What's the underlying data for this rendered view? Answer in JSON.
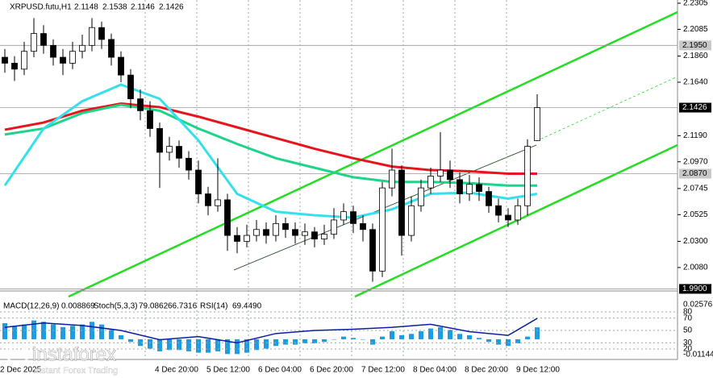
{
  "chart_data": {
    "type": "candlestick",
    "symbol": "XRPUSD.futu,H1",
    "ylim": [
      1.9903,
      2.2332
    ],
    "yticks": [
      2.2305,
      2.2085,
      {
        "value": 2.186,
        "label": "2.1860"
      },
      {
        "value": 2.164,
        "label": "2.1640"
      },
      {
        "value": 2.119,
        "label": "2.1190"
      },
      {
        "value": 2.097,
        "label": "2.0970"
      },
      2.0745,
      2.0525,
      {
        "value": 2.03,
        "label": "2.0300"
      },
      {
        "value": 2.008,
        "label": "2.0080"
      }
    ],
    "levels": [
      {
        "value": 2.195,
        "label": "2.1950"
      },
      {
        "value": 2.1426,
        "label": "2.1426"
      },
      {
        "value": 2.087,
        "label": "2.0870"
      },
      {
        "value": 1.99,
        "label": "1.9900"
      }
    ],
    "candles": {
      "open": [
        2.185,
        2.18,
        2.175,
        2.19,
        2.205,
        2.195,
        2.185,
        2.18,
        2.19,
        2.195,
        2.21,
        2.2,
        2.185,
        2.17,
        2.15,
        2.14,
        2.125,
        2.105,
        2.11,
        2.1,
        2.09,
        2.07,
        2.06,
        2.065,
        2.035,
        2.03,
        2.035,
        2.04,
        2.035,
        2.045,
        2.04,
        2.035,
        2.038,
        2.032,
        2.036,
        2.048,
        2.055,
        2.045,
        2.04,
        2.005,
        2.075,
        2.09,
        2.035,
        2.06,
        2.075,
        2.085,
        2.09,
        2.082,
        2.07,
        2.078,
        2.072,
        2.06,
        2.052,
        2.048,
        2.06,
        2.1148
      ],
      "high": [
        2.192,
        2.186,
        2.198,
        2.218,
        2.212,
        2.2,
        2.192,
        2.198,
        2.204,
        2.218,
        2.215,
        2.205,
        2.19,
        2.175,
        2.158,
        2.148,
        2.13,
        2.118,
        2.115,
        2.106,
        2.098,
        2.076,
        2.1,
        2.07,
        2.042,
        2.044,
        2.048,
        2.046,
        2.052,
        2.05,
        2.046,
        2.045,
        2.042,
        2.044,
        2.058,
        2.062,
        2.06,
        2.052,
        2.045,
        2.08,
        2.108,
        2.094,
        2.068,
        2.082,
        2.092,
        2.122,
        2.098,
        2.088,
        2.086,
        2.084,
        2.076,
        2.066,
        2.058,
        2.066,
        2.116,
        2.1538
      ],
      "low": [
        2.172,
        2.165,
        2.17,
        2.185,
        2.188,
        2.178,
        2.17,
        2.175,
        2.184,
        2.19,
        2.192,
        2.178,
        2.164,
        2.142,
        2.132,
        2.118,
        2.075,
        2.098,
        2.092,
        2.082,
        2.062,
        2.052,
        2.055,
        2.022,
        2.02,
        2.025,
        2.03,
        2.028,
        2.03,
        2.033,
        2.028,
        2.027,
        2.025,
        2.027,
        2.032,
        2.044,
        2.037,
        2.03,
        1.996,
        2.0,
        2.068,
        2.018,
        2.03,
        2.055,
        2.07,
        2.08,
        2.075,
        2.062,
        2.064,
        2.064,
        2.054,
        2.046,
        2.042,
        2.044,
        2.052,
        2.1146
      ],
      "close": [
        2.18,
        2.175,
        2.19,
        2.205,
        2.195,
        2.185,
        2.18,
        2.19,
        2.195,
        2.21,
        2.2,
        2.185,
        2.17,
        2.15,
        2.14,
        2.125,
        2.105,
        2.11,
        2.1,
        2.09,
        2.07,
        2.06,
        2.065,
        2.035,
        2.03,
        2.035,
        2.04,
        2.035,
        2.045,
        2.04,
        2.035,
        2.038,
        2.032,
        2.036,
        2.048,
        2.055,
        2.045,
        2.04,
        2.005,
        2.075,
        2.09,
        2.035,
        2.06,
        2.075,
        2.085,
        2.09,
        2.082,
        2.07,
        2.078,
        2.072,
        2.06,
        2.052,
        2.048,
        2.06,
        2.11,
        2.1426
      ]
    },
    "ma_index": [
      0,
      4,
      8,
      12,
      16,
      20,
      24,
      28,
      32,
      36,
      40,
      44,
      48,
      52,
      55
    ],
    "moving_averages": [
      {
        "color": "#e8141c",
        "values": [
          2.124,
          2.13,
          2.14,
          2.146,
          2.143,
          2.135,
          2.126,
          2.117,
          2.108,
          2.1,
          2.093,
          2.09,
          2.089,
          2.087,
          2.087
        ]
      },
      {
        "color": "#1ed38a",
        "values": [
          2.12,
          2.125,
          2.138,
          2.145,
          2.14,
          2.125,
          2.112,
          2.1,
          2.092,
          2.084,
          2.08,
          2.08,
          2.079,
          2.077,
          2.077
        ]
      },
      {
        "color": "#35e0ee",
        "values": [
          2.077,
          2.125,
          2.148,
          2.162,
          2.15,
          2.115,
          2.07,
          2.055,
          2.052,
          2.05,
          2.057,
          2.07,
          2.071,
          2.066,
          2.07
        ]
      }
    ],
    "macd": {
      "name": "MACD(12,26,9)",
      "color": "#1f9be0",
      "ylim": [
        -0.01504,
        0.03536
      ],
      "yticks": [
        0.02576,
        -0.01144
      ],
      "values": [
        0.012,
        0.01,
        0.011,
        0.014,
        0.013,
        0.011,
        0.009,
        0.01,
        0.011,
        0.013,
        0.011,
        0.007,
        0.003,
        -0.002,
        -0.005,
        -0.007,
        -0.009,
        -0.008,
        -0.008,
        -0.009,
        -0.01,
        -0.01,
        -0.009,
        -0.011,
        -0.011,
        -0.01,
        -0.008,
        -0.007,
        -0.005,
        -0.004,
        -0.004,
        -0.003,
        -0.003,
        -0.002,
        0.0,
        0.002,
        0.001,
        0.0,
        -0.004,
        0.002,
        0.006,
        0.003,
        0.004,
        0.006,
        0.008,
        0.009,
        0.007,
        0.004,
        0.003,
        0.001,
        -0.002,
        -0.004,
        -0.005,
        -0.003,
        0.002,
        0.008869
      ]
    },
    "stoch": {
      "name": "Stoch(5,3,3)",
      "main": 79.0862,
      "signal": 66.7316
    },
    "rsi": {
      "name": "RSI(14)",
      "color": "#0a1ea0",
      "ylim": [
        3.04,
        112.6
      ],
      "yticks": [
        80,
        70,
        50,
        30,
        20
      ],
      "values": [
        55,
        62,
        58,
        50,
        35,
        40,
        30,
        45,
        50,
        52,
        55,
        60,
        48,
        42,
        69.449
      ],
      "value_labels": [
        null,
        null,
        null,
        null,
        null,
        null,
        null,
        null,
        null,
        null,
        null,
        null,
        null,
        null,
        "69.4490"
      ]
    },
    "time_labels": [
      "2 Dec 2025",
      "4 Dec 20:00",
      "5 Dec 12:00",
      "6 Dec 04:00",
      "6 Dec 20:00",
      "7 Dec 12:00",
      "8 Dec 04:00",
      "8 Dec 20:00",
      "9 Dec 12:00"
    ],
    "watermark": {
      "brand": "instaforex",
      "tagline": "Instant Forex Trading"
    }
  }
}
